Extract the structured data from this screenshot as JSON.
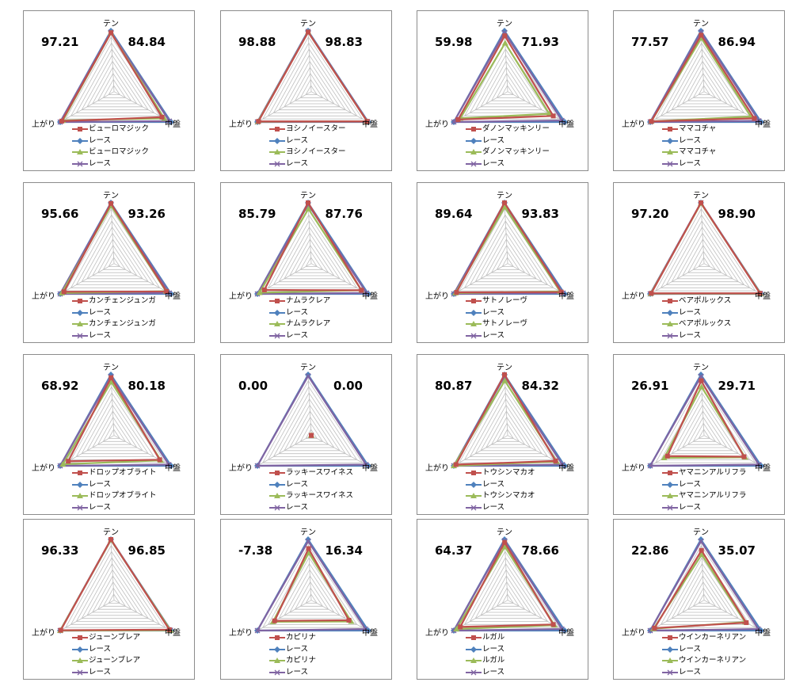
{
  "axes": [
    "テン",
    "中盤",
    "上がり"
  ],
  "scale_max": 100,
  "rings": 10,
  "colors": {
    "red": "#c0504d",
    "blue": "#4f81bd",
    "green": "#9bbb59",
    "purple": "#8064a2"
  },
  "chart_data": [
    {
      "type": "radar",
      "left_value": "97.21",
      "right_value": "84.84",
      "legend": [
        "ビューロマジック",
        "レース",
        "ビューロマジック",
        "レース"
      ],
      "series": [
        {
          "values": [
            97,
            84,
            97
          ]
        },
        {
          "values": [
            100,
            100,
            100
          ]
        },
        {
          "values": [
            97,
            88,
            95
          ]
        },
        {
          "values": [
            98,
            97,
            100
          ]
        }
      ]
    },
    {
      "type": "radar",
      "left_value": "98.88",
      "right_value": "98.83",
      "legend": [
        "ヨシノイースター",
        "レース",
        "ヨシノイースター",
        "レース"
      ],
      "series": [
        {
          "values": [
            98,
            98,
            98
          ]
        },
        {
          "values": [
            100,
            100,
            100
          ]
        },
        {
          "values": [
            98,
            98,
            99
          ]
        },
        {
          "values": [
            99,
            99,
            100
          ]
        }
      ]
    },
    {
      "type": "radar",
      "left_value": "59.98",
      "right_value": "71.93",
      "legend": [
        "ダノンマッキンリー",
        "レース",
        "ダノンマッキンリー",
        "レース"
      ],
      "series": [
        {
          "values": [
            92,
            80,
            92
          ]
        },
        {
          "values": [
            100,
            100,
            100
          ]
        },
        {
          "values": [
            80,
            73,
            88
          ]
        },
        {
          "values": [
            97,
            95,
            100
          ]
        }
      ]
    },
    {
      "type": "radar",
      "left_value": "77.57",
      "right_value": "86.94",
      "legend": [
        "ママコチャ",
        "レース",
        "ママコチャ",
        "レース"
      ],
      "series": [
        {
          "values": [
            93,
            88,
            98
          ]
        },
        {
          "values": [
            100,
            100,
            100
          ]
        },
        {
          "values": [
            88,
            82,
            98
          ]
        },
        {
          "values": [
            98,
            96,
            100
          ]
        }
      ]
    },
    {
      "type": "radar",
      "left_value": "95.66",
      "right_value": "93.26",
      "legend": [
        "カンチェンジュンガ",
        "レース",
        "カンチェンジュンガ",
        "レース"
      ],
      "series": [
        {
          "values": [
            99,
            92,
            93
          ]
        },
        {
          "values": [
            100,
            100,
            100
          ]
        },
        {
          "values": [
            95,
            91,
            97
          ]
        },
        {
          "values": [
            98,
            97,
            100
          ]
        }
      ]
    },
    {
      "type": "radar",
      "left_value": "85.79",
      "right_value": "87.76",
      "legend": [
        "ナムラクレア",
        "レース",
        "ナムラクレア",
        "レース"
      ],
      "series": [
        {
          "values": [
            100,
            88,
            87
          ]
        },
        {
          "values": [
            100,
            100,
            100
          ]
        },
        {
          "values": [
            90,
            88,
            96
          ]
        },
        {
          "values": [
            97,
            97,
            100
          ]
        }
      ]
    },
    {
      "type": "radar",
      "left_value": "89.64",
      "right_value": "93.83",
      "legend": [
        "サトノレーヴ",
        "レース",
        "サトノレーヴ",
        "レース"
      ],
      "series": [
        {
          "values": [
            100,
            94,
            95
          ]
        },
        {
          "values": [
            100,
            100,
            100
          ]
        },
        {
          "values": [
            93,
            92,
            97
          ]
        },
        {
          "values": [
            98,
            97,
            100
          ]
        }
      ]
    },
    {
      "type": "radar",
      "left_value": "97.20",
      "right_value": "98.90",
      "legend": [
        "ベアポルックス",
        "レース",
        "ベアポルックス",
        "レース"
      ],
      "series": [
        {
          "values": [
            100,
            98,
            98
          ]
        },
        {
          "values": [
            100,
            100,
            100
          ]
        },
        {
          "values": [
            99,
            99,
            99
          ]
        },
        {
          "values": [
            100,
            99,
            100
          ]
        }
      ]
    },
    {
      "type": "radar",
      "left_value": "68.92",
      "right_value": "80.18",
      "legend": [
        "ドロップオブライト",
        "レース",
        "ドロップオブライト",
        "レース"
      ],
      "series": [
        {
          "values": [
            95,
            80,
            85
          ]
        },
        {
          "values": [
            100,
            100,
            100
          ]
        },
        {
          "values": [
            88,
            82,
            95
          ]
        },
        {
          "values": [
            97,
            96,
            100
          ]
        }
      ]
    },
    {
      "type": "radar",
      "left_value": "0.00",
      "right_value": "0.00",
      "legend": [
        "ラッキースワイネス",
        "レース",
        "ラッキースワイネス",
        "レース"
      ],
      "series": [
        {
          "values": [
            0,
            0,
            0
          ]
        },
        {
          "values": [
            100,
            100,
            100
          ]
        },
        {
          "values": [
            0,
            0,
            0
          ]
        },
        {
          "values": [
            98,
            96,
            100
          ]
        }
      ]
    },
    {
      "type": "radar",
      "left_value": "80.87",
      "right_value": "84.32",
      "legend": [
        "トウシンマカオ",
        "レース",
        "トウシンマカオ",
        "レース"
      ],
      "series": [
        {
          "values": [
            100,
            84,
            96
          ]
        },
        {
          "values": [
            100,
            100,
            100
          ]
        },
        {
          "values": [
            90,
            86,
            100
          ]
        },
        {
          "values": [
            97,
            96,
            100
          ]
        }
      ]
    },
    {
      "type": "radar",
      "left_value": "26.91",
      "right_value": "29.71",
      "legend": [
        "ヤマニンアルリフラ",
        "レース",
        "ヤマニンアルリフラ",
        "レース"
      ],
      "series": [
        {
          "values": [
            90,
            70,
            68
          ]
        },
        {
          "values": [
            100,
            100,
            100
          ]
        },
        {
          "values": [
            80,
            72,
            74
          ]
        },
        {
          "values": [
            97,
            96,
            100
          ]
        }
      ]
    },
    {
      "type": "radar",
      "left_value": "96.33",
      "right_value": "96.85",
      "legend": [
        "ジューンブレア",
        "レース",
        "ジューンブレア",
        "レース"
      ],
      "series": [
        {
          "values": [
            100,
            97,
            99
          ]
        },
        {
          "values": [
            100,
            100,
            100
          ]
        },
        {
          "values": [
            99,
            99,
            100
          ]
        },
        {
          "values": [
            99,
            99,
            100
          ]
        }
      ]
    },
    {
      "type": "radar",
      "left_value": "-7.38",
      "right_value": "16.34",
      "legend": [
        "カピリナ",
        "レース",
        "カピリナ",
        "レース"
      ],
      "series": [
        {
          "values": [
            85,
            66,
            68
          ]
        },
        {
          "values": [
            100,
            100,
            100
          ]
        },
        {
          "values": [
            78,
            70,
            71
          ]
        },
        {
          "values": [
            97,
            95,
            100
          ]
        }
      ]
    },
    {
      "type": "radar",
      "left_value": "64.37",
      "right_value": "78.66",
      "legend": [
        "ルガル",
        "レース",
        "ルガル",
        "レース"
      ],
      "series": [
        {
          "values": [
            95,
            80,
            88
          ]
        },
        {
          "values": [
            100,
            100,
            100
          ]
        },
        {
          "values": [
            88,
            82,
            95
          ]
        },
        {
          "values": [
            98,
            95,
            100
          ]
        }
      ]
    },
    {
      "type": "radar",
      "left_value": "22.86",
      "right_value": "35.07",
      "legend": [
        "ウインカーネリアン",
        "レース",
        "ウインカーネリアン",
        "レース"
      ],
      "series": [
        {
          "values": [
            82,
            74,
            92
          ]
        },
        {
          "values": [
            100,
            100,
            100
          ]
        },
        {
          "values": [
            75,
            72,
            94
          ]
        },
        {
          "values": [
            97,
            95,
            100
          ]
        }
      ]
    }
  ]
}
